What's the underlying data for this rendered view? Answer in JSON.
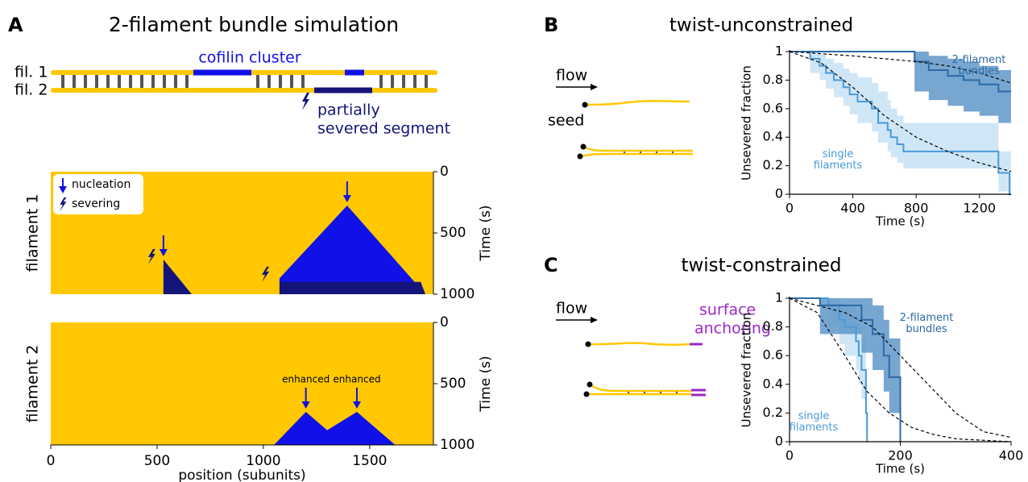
{
  "panel_labels": [
    "A",
    "B",
    "C"
  ],
  "titles": [
    "2-filament bundle simulation",
    "twist-unconstrained",
    "twist-constrained"
  ],
  "diagram_a": {
    "fil_labels": [
      "fil. 1",
      "fil. 2"
    ],
    "cofilin": "cofilin cluster",
    "severed": [
      "partially",
      "severed segment"
    ]
  },
  "diagram_b": {
    "flow": "flow",
    "seed": "seed"
  },
  "diagram_c": {
    "flow": "flow",
    "anchoring": [
      "surface",
      "anchoring"
    ]
  },
  "chart_data": [
    {
      "type": "kymograph",
      "ylabel": "filament 1",
      "y2label": "Time (s)",
      "xlim": [
        0,
        1800
      ],
      "ylim": [
        0,
        1000
      ],
      "yticks": [
        0,
        500,
        1000
      ],
      "inverted": true,
      "background": "#ffc800",
      "legend": [
        "nucleation",
        "severing"
      ],
      "domains": [
        {
          "color": "#1010e8",
          "position": [
            1394,
            1762,
            1076,
            1076
          ],
          "time": [
            276,
            1000,
            1000,
            870
          ]
        },
        {
          "color": "#14147a",
          "position": [
            1076,
            1740,
            1762,
            1076
          ],
          "time": [
            900,
            900,
            1000,
            1000
          ]
        },
        {
          "color": "#14147a",
          "position": [
            530,
            663,
            530
          ],
          "time": [
            717,
            1000,
            1000
          ]
        }
      ],
      "nucleation": {
        "position": [
          530,
          1394
        ],
        "time": [
          717,
          276
        ]
      },
      "severing": {
        "position": [
          500,
          1035
        ],
        "time": [
          690,
          835
        ]
      }
    },
    {
      "type": "kymograph",
      "ylabel": "filament 2",
      "y2label": "Time (s)",
      "xlabel": "position (subunits)",
      "xlim": [
        0,
        1800
      ],
      "xticks": [
        0,
        500,
        1000,
        1500
      ],
      "ylim": [
        0,
        1000
      ],
      "yticks": [
        0,
        500,
        1000
      ],
      "inverted": true,
      "background": "#ffc800",
      "domains": [
        {
          "color": "#1010e8",
          "position": [
            1050,
            1200,
            1300,
            1440,
            1620
          ],
          "time": [
            1000,
            730,
            880,
            730,
            1000
          ]
        }
      ],
      "nucleation": {
        "position": [
          1200,
          1440
        ],
        "time": [
          730,
          730
        ],
        "labels": [
          "enhanced",
          "enhanced"
        ]
      },
      "severing": {
        "position": [
          1620,
          940
        ]
      }
    },
    {
      "type": "survival",
      "ylabel": "Unsevered fraction",
      "xlabel": "Time (s)",
      "xlim": [
        0,
        1400
      ],
      "ylim": [
        0,
        1
      ],
      "xticks": [
        0,
        400,
        800,
        1200
      ],
      "yticks": [
        0,
        0.2,
        0.4,
        0.6,
        0.8,
        1
      ],
      "series": [
        {
          "name": "single filaments",
          "color": "#4a9ad8",
          "band_color": "#cfe6f7",
          "x": [
            0,
            130,
            190,
            230,
            280,
            340,
            380,
            430,
            520,
            560,
            620,
            640,
            680,
            720,
            1320,
            1390,
            1400
          ],
          "values": [
            1,
            0.95,
            0.9,
            0.85,
            0.8,
            0.75,
            0.7,
            0.65,
            0.6,
            0.5,
            0.45,
            0.4,
            0.35,
            0.3,
            0.15,
            0,
            0
          ],
          "upper": [
            1,
            1,
            0.98,
            0.95,
            0.92,
            0.88,
            0.85,
            0.82,
            0.78,
            0.72,
            0.66,
            0.6,
            0.55,
            0.5,
            0.3,
            0.3,
            0.3
          ],
          "lower": [
            1,
            0.85,
            0.8,
            0.74,
            0.68,
            0.62,
            0.56,
            0.5,
            0.44,
            0.36,
            0.3,
            0.26,
            0.22,
            0.18,
            0.02,
            0,
            0
          ]
        },
        {
          "name": "2-filament bundles",
          "color": "#2c6aa6",
          "band_color": "#5f97c8",
          "x": [
            0,
            790,
            880,
            1000,
            1100,
            1200,
            1320,
            1400
          ],
          "values": [
            1,
            0.93,
            0.87,
            0.83,
            0.8,
            0.77,
            0.72,
            0.72
          ],
          "upper": [
            1,
            1,
            0.97,
            0.95,
            0.93,
            0.9,
            0.87,
            0.87
          ],
          "lower": [
            1,
            0.72,
            0.66,
            0.62,
            0.58,
            0.55,
            0.5,
            0.5
          ]
        }
      ],
      "models": [
        {
          "color": "#000000",
          "x": [
            0,
            200,
            400,
            600,
            800,
            1000,
            1200,
            1400
          ],
          "values": [
            1,
            0.92,
            0.75,
            0.55,
            0.4,
            0.3,
            0.22,
            0.16
          ]
        },
        {
          "color": "#000000",
          "x": [
            0,
            400,
            800,
            1000,
            1200,
            1400
          ],
          "values": [
            1,
            0.97,
            0.93,
            0.9,
            0.85,
            0.78
          ]
        }
      ]
    },
    {
      "type": "survival",
      "ylabel": "Unsevered fraction",
      "xlabel": "Time (s)",
      "xlim": [
        0,
        400
      ],
      "ylim": [
        0,
        1
      ],
      "xticks": [
        0,
        200,
        400
      ],
      "yticks": [
        0,
        0.2,
        0.4,
        0.6,
        0.8,
        1
      ],
      "series": [
        {
          "name": "single filaments",
          "color": "#4a9ad8",
          "band_color": "#cfe6f7",
          "x": [
            0,
            70,
            90,
            100,
            120,
            125,
            130,
            138,
            140
          ],
          "values": [
            1,
            0.95,
            0.85,
            0.8,
            0.7,
            0.6,
            0.5,
            0.2,
            0
          ],
          "upper": [
            1,
            1,
            0.97,
            0.95,
            0.88,
            0.8,
            0.72,
            0.45,
            0
          ],
          "lower": [
            1,
            0.8,
            0.68,
            0.6,
            0.5,
            0.4,
            0.3,
            0.05,
            0
          ]
        },
        {
          "name": "2-filament bundles",
          "color": "#2c6aa6",
          "band_color": "#5f97c8",
          "x": [
            0,
            55,
            130,
            150,
            170,
            180,
            200
          ],
          "values": [
            1,
            0.95,
            0.85,
            0.75,
            0.6,
            0.45,
            0
          ],
          "upper": [
            1,
            1,
            1,
            0.95,
            0.85,
            0.72,
            0
          ],
          "lower": [
            1,
            0.75,
            0.62,
            0.5,
            0.35,
            0.2,
            0
          ]
        }
      ],
      "models": [
        {
          "color": "#000000",
          "x": [
            0,
            50,
            100,
            140,
            180,
            220,
            260,
            300,
            400
          ],
          "values": [
            1,
            0.9,
            0.6,
            0.35,
            0.2,
            0.1,
            0.05,
            0.02,
            0
          ]
        },
        {
          "color": "#000000",
          "x": [
            0,
            100,
            150,
            200,
            250,
            300,
            350,
            400
          ],
          "values": [
            1,
            0.9,
            0.8,
            0.6,
            0.4,
            0.2,
            0.07,
            0.03
          ]
        }
      ]
    }
  ]
}
